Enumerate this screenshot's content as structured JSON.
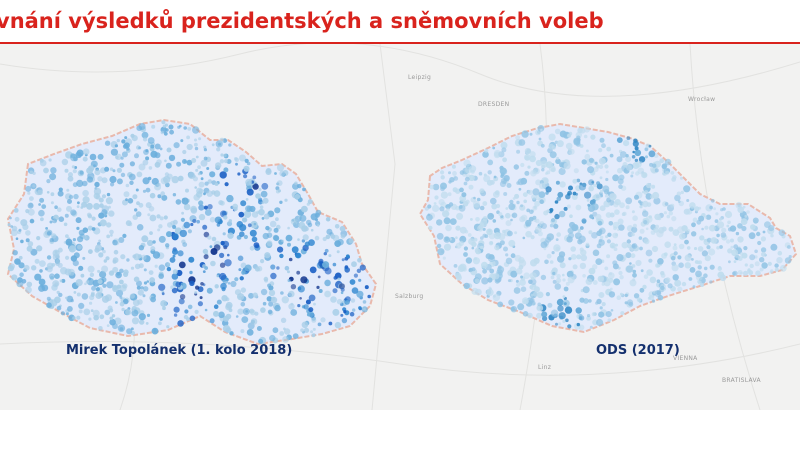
{
  "header": {
    "title": "vnání výsledků prezidentských a sněmovních voleb",
    "title_color": "#d9231d"
  },
  "maps": {
    "left": {
      "caption": "Mirek Topolánek (1. kolo 2018)",
      "color_scale": [
        "#a9cfe8",
        "#6aaedc",
        "#2f86d0",
        "#1a5fc4",
        "#0b2f8a"
      ]
    },
    "right": {
      "caption": "ODS (2017)",
      "color_scale": [
        "#bfdcee",
        "#90c3e4",
        "#5fa6d6",
        "#2f86c4"
      ]
    }
  },
  "base_map": {
    "background": "#f2f2f1",
    "country_fill": "#e3ebfb",
    "border_color": "#e9b9ac",
    "city_labels": [
      "Leipzig",
      "DRESDEN",
      "Wrocław",
      "Salzburg",
      "Linz",
      "VIENNA",
      "BRATISLAVA"
    ]
  }
}
